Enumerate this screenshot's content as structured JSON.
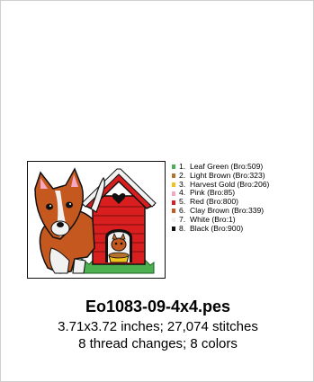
{
  "design": {
    "filename": "Eo1083-09-4x4.pes",
    "size_stitches": "3.71x3.72 inches; 27,074 stitches",
    "changes_colors": "8 thread changes; 8 colors"
  },
  "threads": [
    {
      "num": "1.",
      "name": "Leaf Green (Bro:509)",
      "color": "#4caf50"
    },
    {
      "num": "2.",
      "name": "Light Brown (Bro:323)",
      "color": "#b5722c"
    },
    {
      "num": "3.",
      "name": "Harvest Gold (Bro:206)",
      "color": "#f2c21b"
    },
    {
      "num": "4.",
      "name": "Pink (Bro:85)",
      "color": "#f7a7c4"
    },
    {
      "num": "5.",
      "name": "Red (Bro:800)",
      "color": "#d81e1e"
    },
    {
      "num": "6.",
      "name": "Clay Brown (Bro:339)",
      "color": "#c4581f"
    },
    {
      "num": "7.",
      "name": "White (Bro:1)",
      "color": "#f1f1f1"
    },
    {
      "num": "8.",
      "name": "Black (Bro:900)",
      "color": "#111111"
    }
  ]
}
